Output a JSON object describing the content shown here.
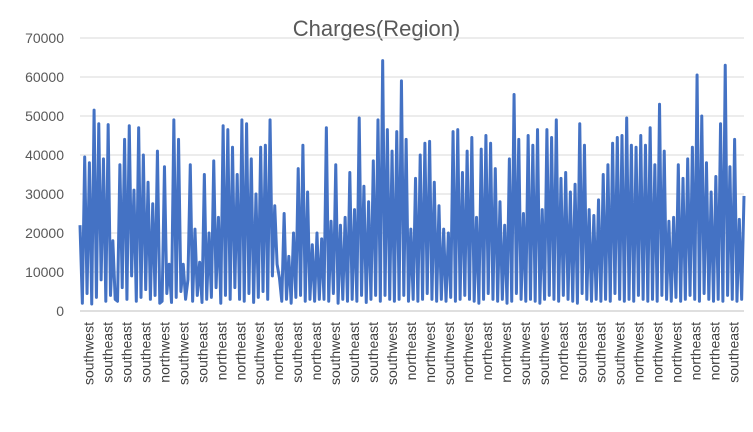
{
  "chart_data": {
    "type": "line",
    "title": "Charges(Region)",
    "xlabel": "",
    "ylabel": "",
    "ylim": [
      0,
      70000
    ],
    "yticks": [
      "0",
      "10000",
      "20000",
      "30000",
      "40000",
      "50000",
      "60000",
      "70000"
    ],
    "xtick_labels": [
      "southwest",
      "southeast",
      "southeast",
      "southeast",
      "northwest",
      "southwest",
      "southeast",
      "northeast",
      "northeast",
      "southwest",
      "northeast",
      "southeast",
      "northeast",
      "southwest",
      "southeast",
      "southeast",
      "southwest",
      "northeast",
      "northwest",
      "southwest",
      "northwest",
      "northeast",
      "northwest",
      "southwest",
      "southwest",
      "northeast",
      "southeast",
      "southeast",
      "southwest",
      "northwest",
      "northwest",
      "northwest",
      "northeast",
      "northeast",
      "southeast"
    ],
    "series": [
      {
        "color": "#4472c4",
        "values": [
          22000,
          2000,
          39500,
          4500,
          38000,
          1800,
          51500,
          3500,
          48000,
          8000,
          39000,
          2500,
          47800,
          4000,
          18000,
          3000,
          2500,
          37500,
          6000,
          44000,
          3000,
          47500,
          9000,
          31000,
          2500,
          47000,
          3500,
          40000,
          5500,
          33000,
          3000,
          27500,
          4000,
          41000,
          2000,
          2500,
          37000,
          4500,
          12000,
          2200,
          49000,
          3500,
          44000,
          5000,
          12000,
          3000,
          8000,
          37500,
          2500,
          21000,
          4000,
          12500,
          2200,
          35000,
          3000,
          20000,
          3500,
          38500,
          6000,
          24000,
          2000,
          47500,
          4000,
          46500,
          3000,
          42000,
          6000,
          35000,
          3000,
          49000,
          2500,
          48000,
          4500,
          39000,
          2200,
          30000,
          3500,
          42000,
          5000,
          42500,
          3000,
          49000,
          9000,
          27000,
          12000,
          8500,
          2500,
          25000,
          3000,
          14000,
          2000,
          20000,
          3500,
          36500,
          4000,
          42500,
          2500,
          30500,
          3000,
          17000,
          2500,
          20000,
          3000,
          18500,
          3000,
          47000,
          2500,
          23000,
          4500,
          37500,
          2000,
          22000,
          3000,
          24000,
          2500,
          35500,
          3000,
          26000,
          2500,
          49500,
          4000,
          32000,
          2200,
          28000,
          3000,
          38500,
          4000,
          49000,
          2500,
          64200,
          4000,
          46500,
          3000,
          41000,
          2500,
          46000,
          3000,
          59000,
          4000,
          44000,
          2500,
          21000,
          3000,
          34000,
          2500,
          40000,
          3000,
          43000,
          4500,
          43500,
          3000,
          33000,
          2500,
          27000,
          3000,
          21000,
          2500,
          20000,
          3500,
          46000,
          2500,
          46500,
          3000,
          35500,
          4000,
          41000,
          3000,
          44500,
          2500,
          24000,
          2000,
          41500,
          3000,
          45000,
          4500,
          43000,
          3000,
          36500,
          2500,
          28000,
          3000,
          22000,
          2000,
          39000,
          2500,
          55500,
          4500,
          44000,
          3000,
          25000,
          2500,
          45000,
          3000,
          42500,
          2500,
          46500,
          2000,
          26000,
          3000,
          46500,
          4000,
          44500,
          3000,
          49000,
          2500,
          34000,
          4000,
          35500,
          3000,
          30500,
          2500,
          32500,
          2000,
          48000,
          4500,
          42500,
          3000,
          26000,
          2500,
          24500,
          3000,
          28500,
          2500,
          35000,
          3000,
          37500,
          2500,
          43000,
          4500,
          44500,
          3000,
          45000,
          2500,
          49500,
          3000,
          42500,
          2500,
          42000,
          4000,
          45000,
          3000,
          42500,
          2500,
          47000,
          3000,
          37500,
          2500,
          53000,
          4000,
          41000,
          3000,
          23000,
          2500,
          24000,
          3500,
          37500,
          2500,
          34000,
          3000,
          39000,
          4000,
          42000,
          3000,
          60500,
          2500,
          50000,
          4500,
          38000,
          3000,
          30500,
          2500,
          34500,
          3000,
          48000,
          2500,
          63000,
          4000,
          37000,
          3000,
          44000,
          2500,
          23500,
          3000,
          29500
        ]
      }
    ]
  }
}
